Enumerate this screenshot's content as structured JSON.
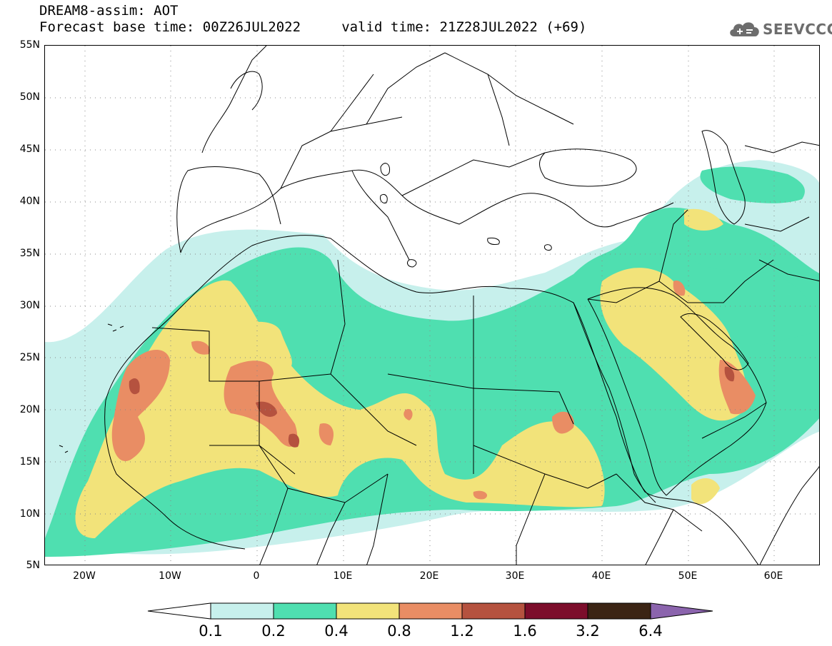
{
  "header": {
    "line1": "DREAM8-assim: AOT",
    "line2": "Forecast base time: 00Z26JUL2022     valid time: 21Z28JUL2022 (+69)"
  },
  "logo": {
    "text": "SEEVCCC",
    "icon": "cloud-icon",
    "color": "#6d6d6d"
  },
  "map": {
    "variable": "AOT",
    "lat_labels": [
      "55N",
      "50N",
      "45N",
      "40N",
      "35N",
      "30N",
      "25N",
      "20N",
      "15N",
      "10N",
      "5N"
    ],
    "lon_labels": [
      "20W",
      "10W",
      "0",
      "10E",
      "20E",
      "30E",
      "40E",
      "50E",
      "60E"
    ],
    "lat_range": [
      5,
      55
    ],
    "lon_range": [
      -25,
      65
    ],
    "grid": "dotted"
  },
  "colorbar": {
    "labels": [
      "0.1",
      "0.2",
      "0.4",
      "0.8",
      "1.2",
      "1.6",
      "3.2",
      "6.4"
    ],
    "colors": [
      "#c7f0ec",
      "#4fdfb0",
      "#f2e37a",
      "#e98d64",
      "#b5523f",
      "#7c0d2b",
      "#3b2414",
      "#8b64ad"
    ],
    "under_color": "#ffffff"
  }
}
